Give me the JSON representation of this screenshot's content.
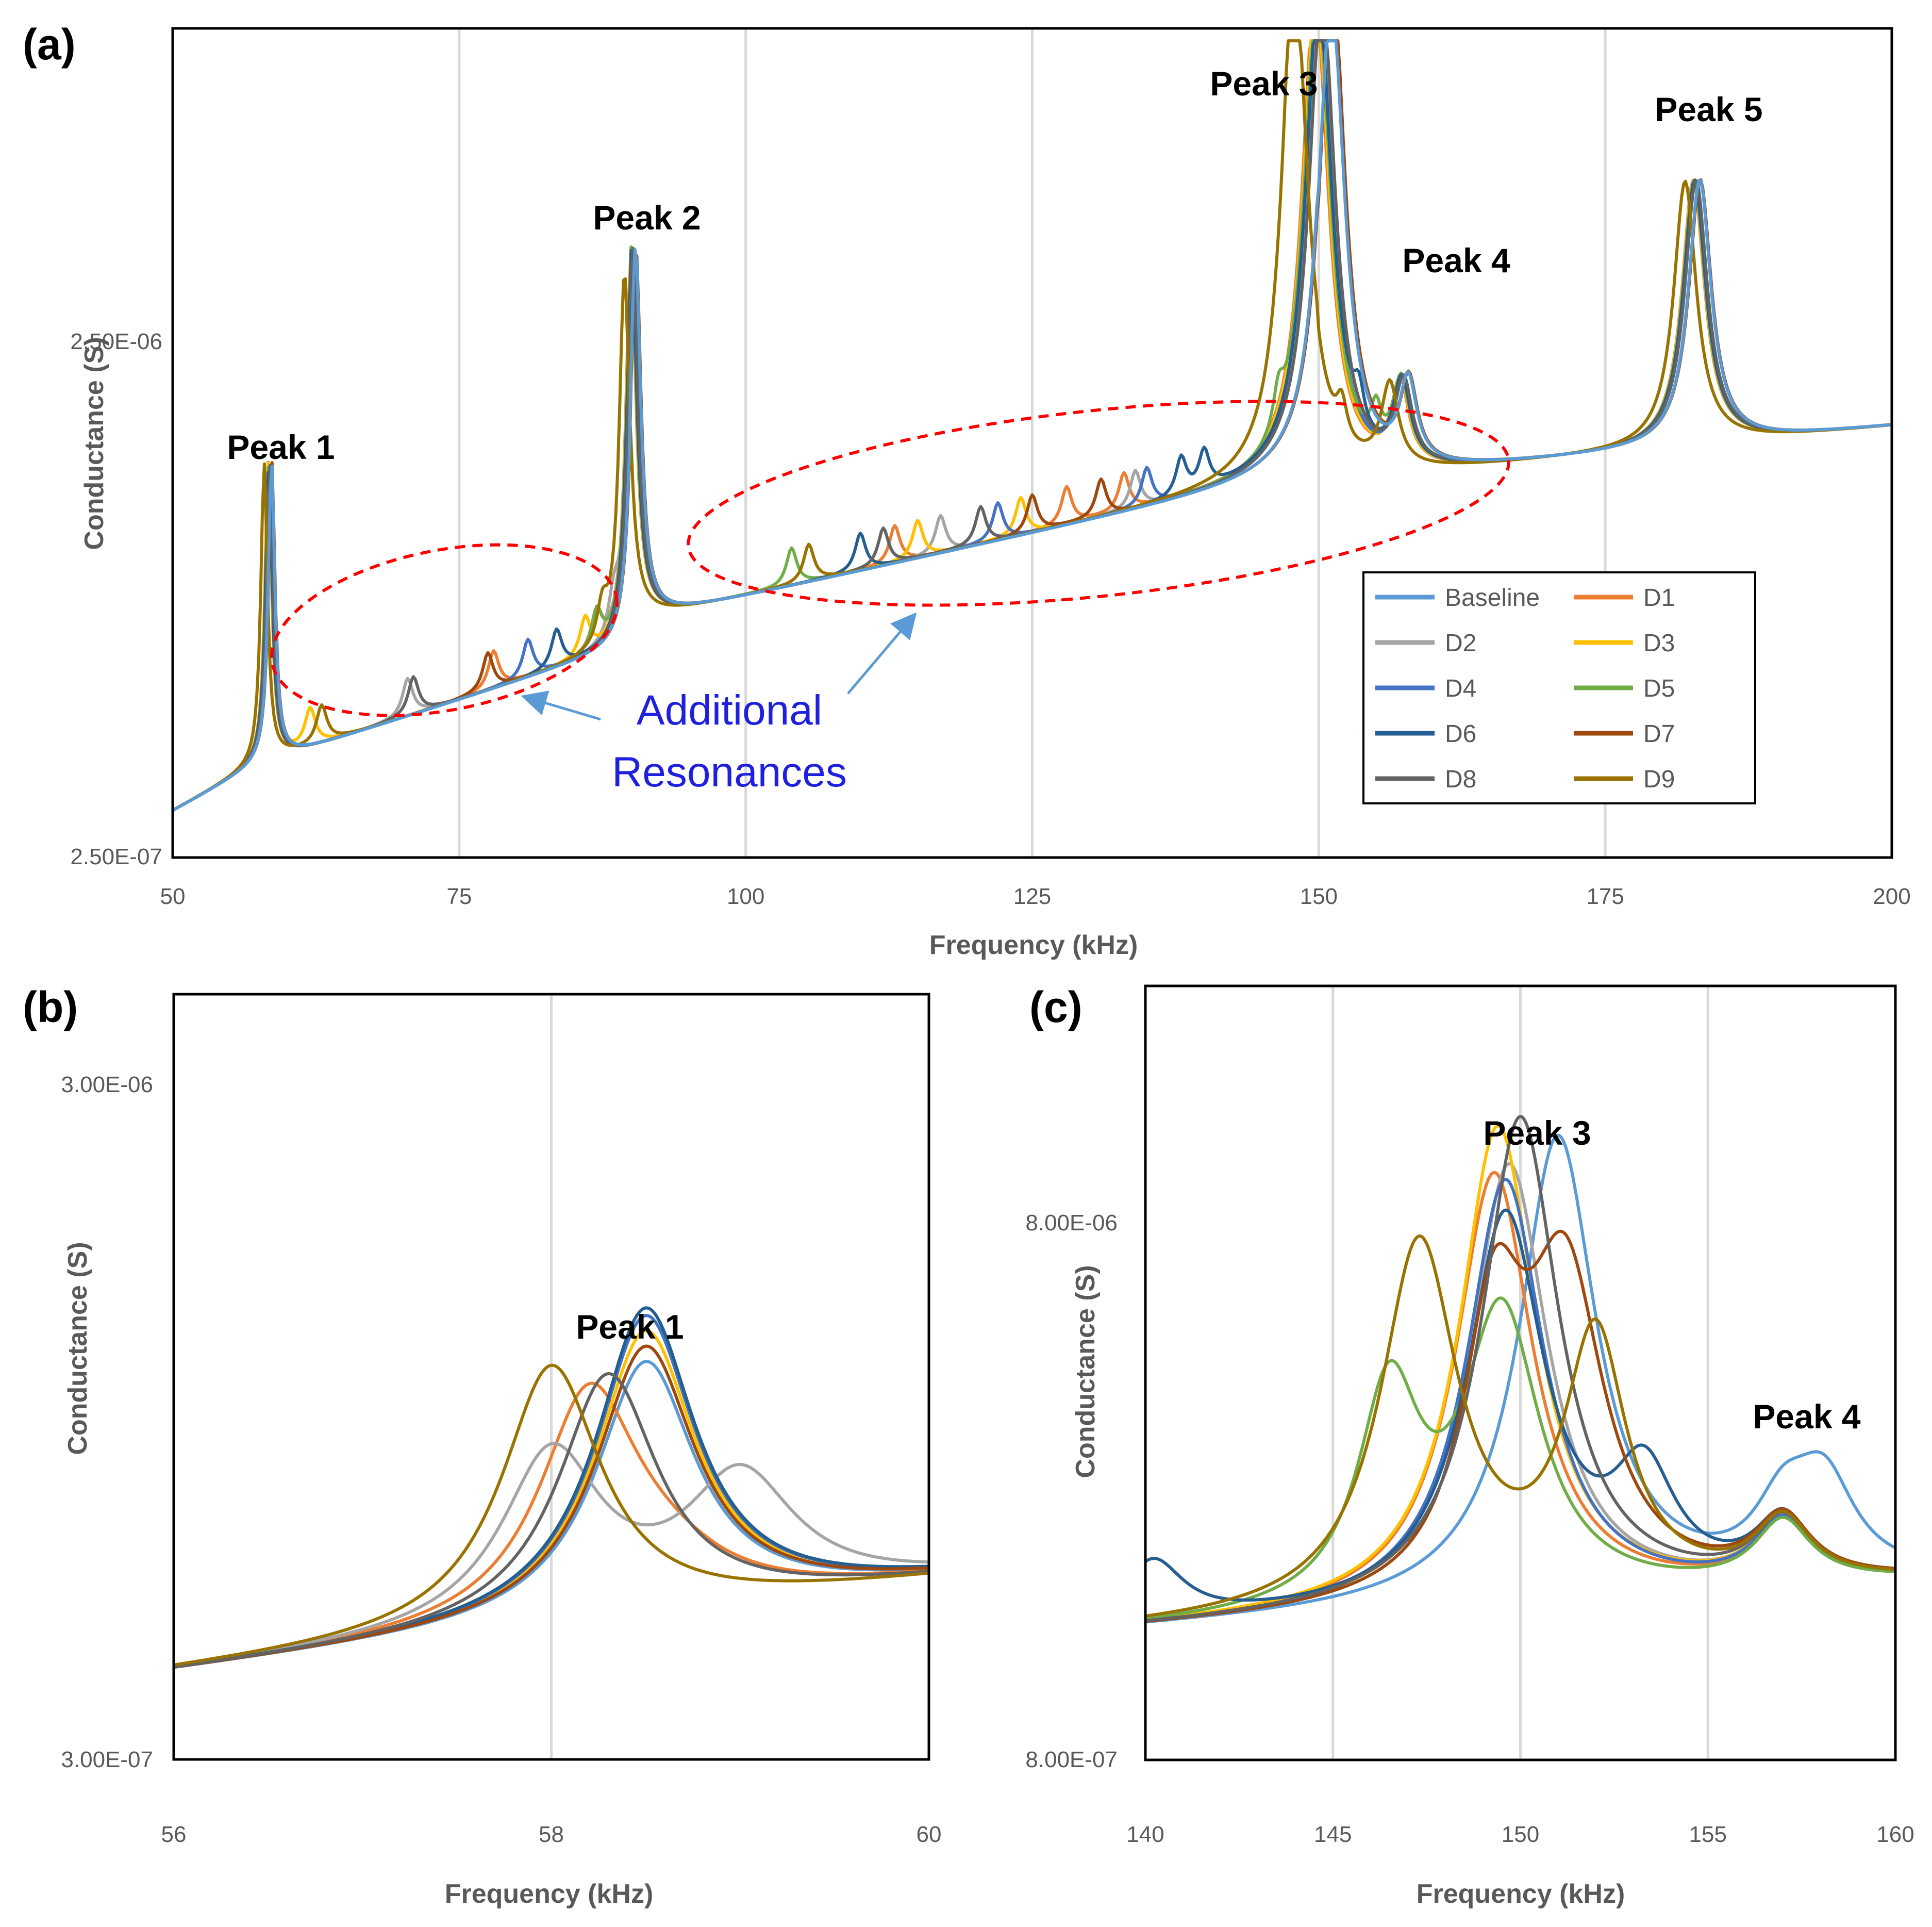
{
  "figure": {
    "series_colors": {
      "Baseline": "#5b9bd5",
      "D1": "#ed7d31",
      "D2": "#a5a5a5",
      "D3": "#ffc000",
      "D4": "#4472c4",
      "D5": "#70ad47",
      "D6": "#255e91",
      "D7": "#9e480e",
      "D8": "#636363",
      "D9": "#997300"
    },
    "annotation_color": "#1f1fe0",
    "ellipse_color": "#ff0000"
  },
  "chart_data": [
    {
      "id": "a",
      "type": "line",
      "panel_label": "(a)",
      "xlabel": "Frequency (kHz)",
      "ylabel": "Conductance (S)",
      "xlim": [
        50,
        200
      ],
      "x_ticks": [
        "50",
        "75",
        "100",
        "125",
        "150",
        "175",
        "200"
      ],
      "y_scale": "log",
      "y_ticks": [
        "2.50E-06",
        "2.50E-07"
      ],
      "grid": "vertical",
      "legend_position": "lower-right",
      "legend": [
        "Baseline",
        "D1",
        "D2",
        "D3",
        "D4",
        "D5",
        "D6",
        "D7",
        "D8",
        "D9"
      ],
      "peak_labels": [
        "Peak 1",
        "Peak 2",
        "Peak 3",
        "Peak 4",
        "Peak 5"
      ],
      "peak_frequencies_khz": [
        58.5,
        90.2,
        150.5,
        157.5,
        183.0
      ],
      "annotation": [
        "Additional",
        "Resonances"
      ],
      "additional_resonances_khz": {
        "D1": [
          78,
          87,
          113,
          128,
          133
        ],
        "D2": [
          70.5,
          88.5,
          117,
          134
        ],
        "D3": [
          62,
          86,
          115,
          124
        ],
        "D4": [
          81,
          122,
          135
        ],
        "D5": [
          87,
          104,
          146.5,
          155
        ],
        "D6": [
          83.5,
          110,
          138,
          140,
          153.5
        ],
        "D7": [
          77.5,
          125,
          131,
          151
        ],
        "D8": [
          71,
          112,
          120.5
        ],
        "D9": [
          63,
          87.5,
          105.5,
          147.5,
          152
        ]
      }
    },
    {
      "id": "b",
      "type": "line",
      "panel_label": "(b)",
      "title": "Peak 1",
      "xlabel": "Frequency (kHz)",
      "ylabel": "Conductance (S)",
      "xlim": [
        56,
        60
      ],
      "x_ticks": [
        "56",
        "58",
        "60"
      ],
      "y_scale": "log",
      "y_ticks": [
        "3.00E-06",
        "3.00E-07"
      ],
      "grid": "vertical",
      "peak_frequency_khz": {
        "Baseline": 58.5,
        "D1": 58.2,
        "D2": 58.0,
        "D3": 58.5,
        "D4": 58.5,
        "D5": 58.5,
        "D6": 58.5,
        "D7": 58.5,
        "D8": 58.3,
        "D9": 58.0
      }
    },
    {
      "id": "c",
      "type": "line",
      "panel_label": "(c)",
      "title": "Peak 3",
      "secondary_label": "Peak 4",
      "xlabel": "Frequency (kHz)",
      "ylabel": "Conductance (S)",
      "xlim": [
        140,
        160
      ],
      "x_ticks": [
        "140",
        "145",
        "150",
        "155",
        "160"
      ],
      "y_scale": "log",
      "y_ticks": [
        "8.00E-06",
        "8.00E-07"
      ],
      "grid": "vertical",
      "peak_frequency_khz": {
        "Baseline": 151.0,
        "D1": 149.3,
        "D2": 149.7,
        "D3": 149.4,
        "D4": 149.6,
        "D5": 149.5,
        "D6": 149.6,
        "D7": 151.2,
        "D8": 150.0,
        "D9": 147.3
      }
    }
  ]
}
